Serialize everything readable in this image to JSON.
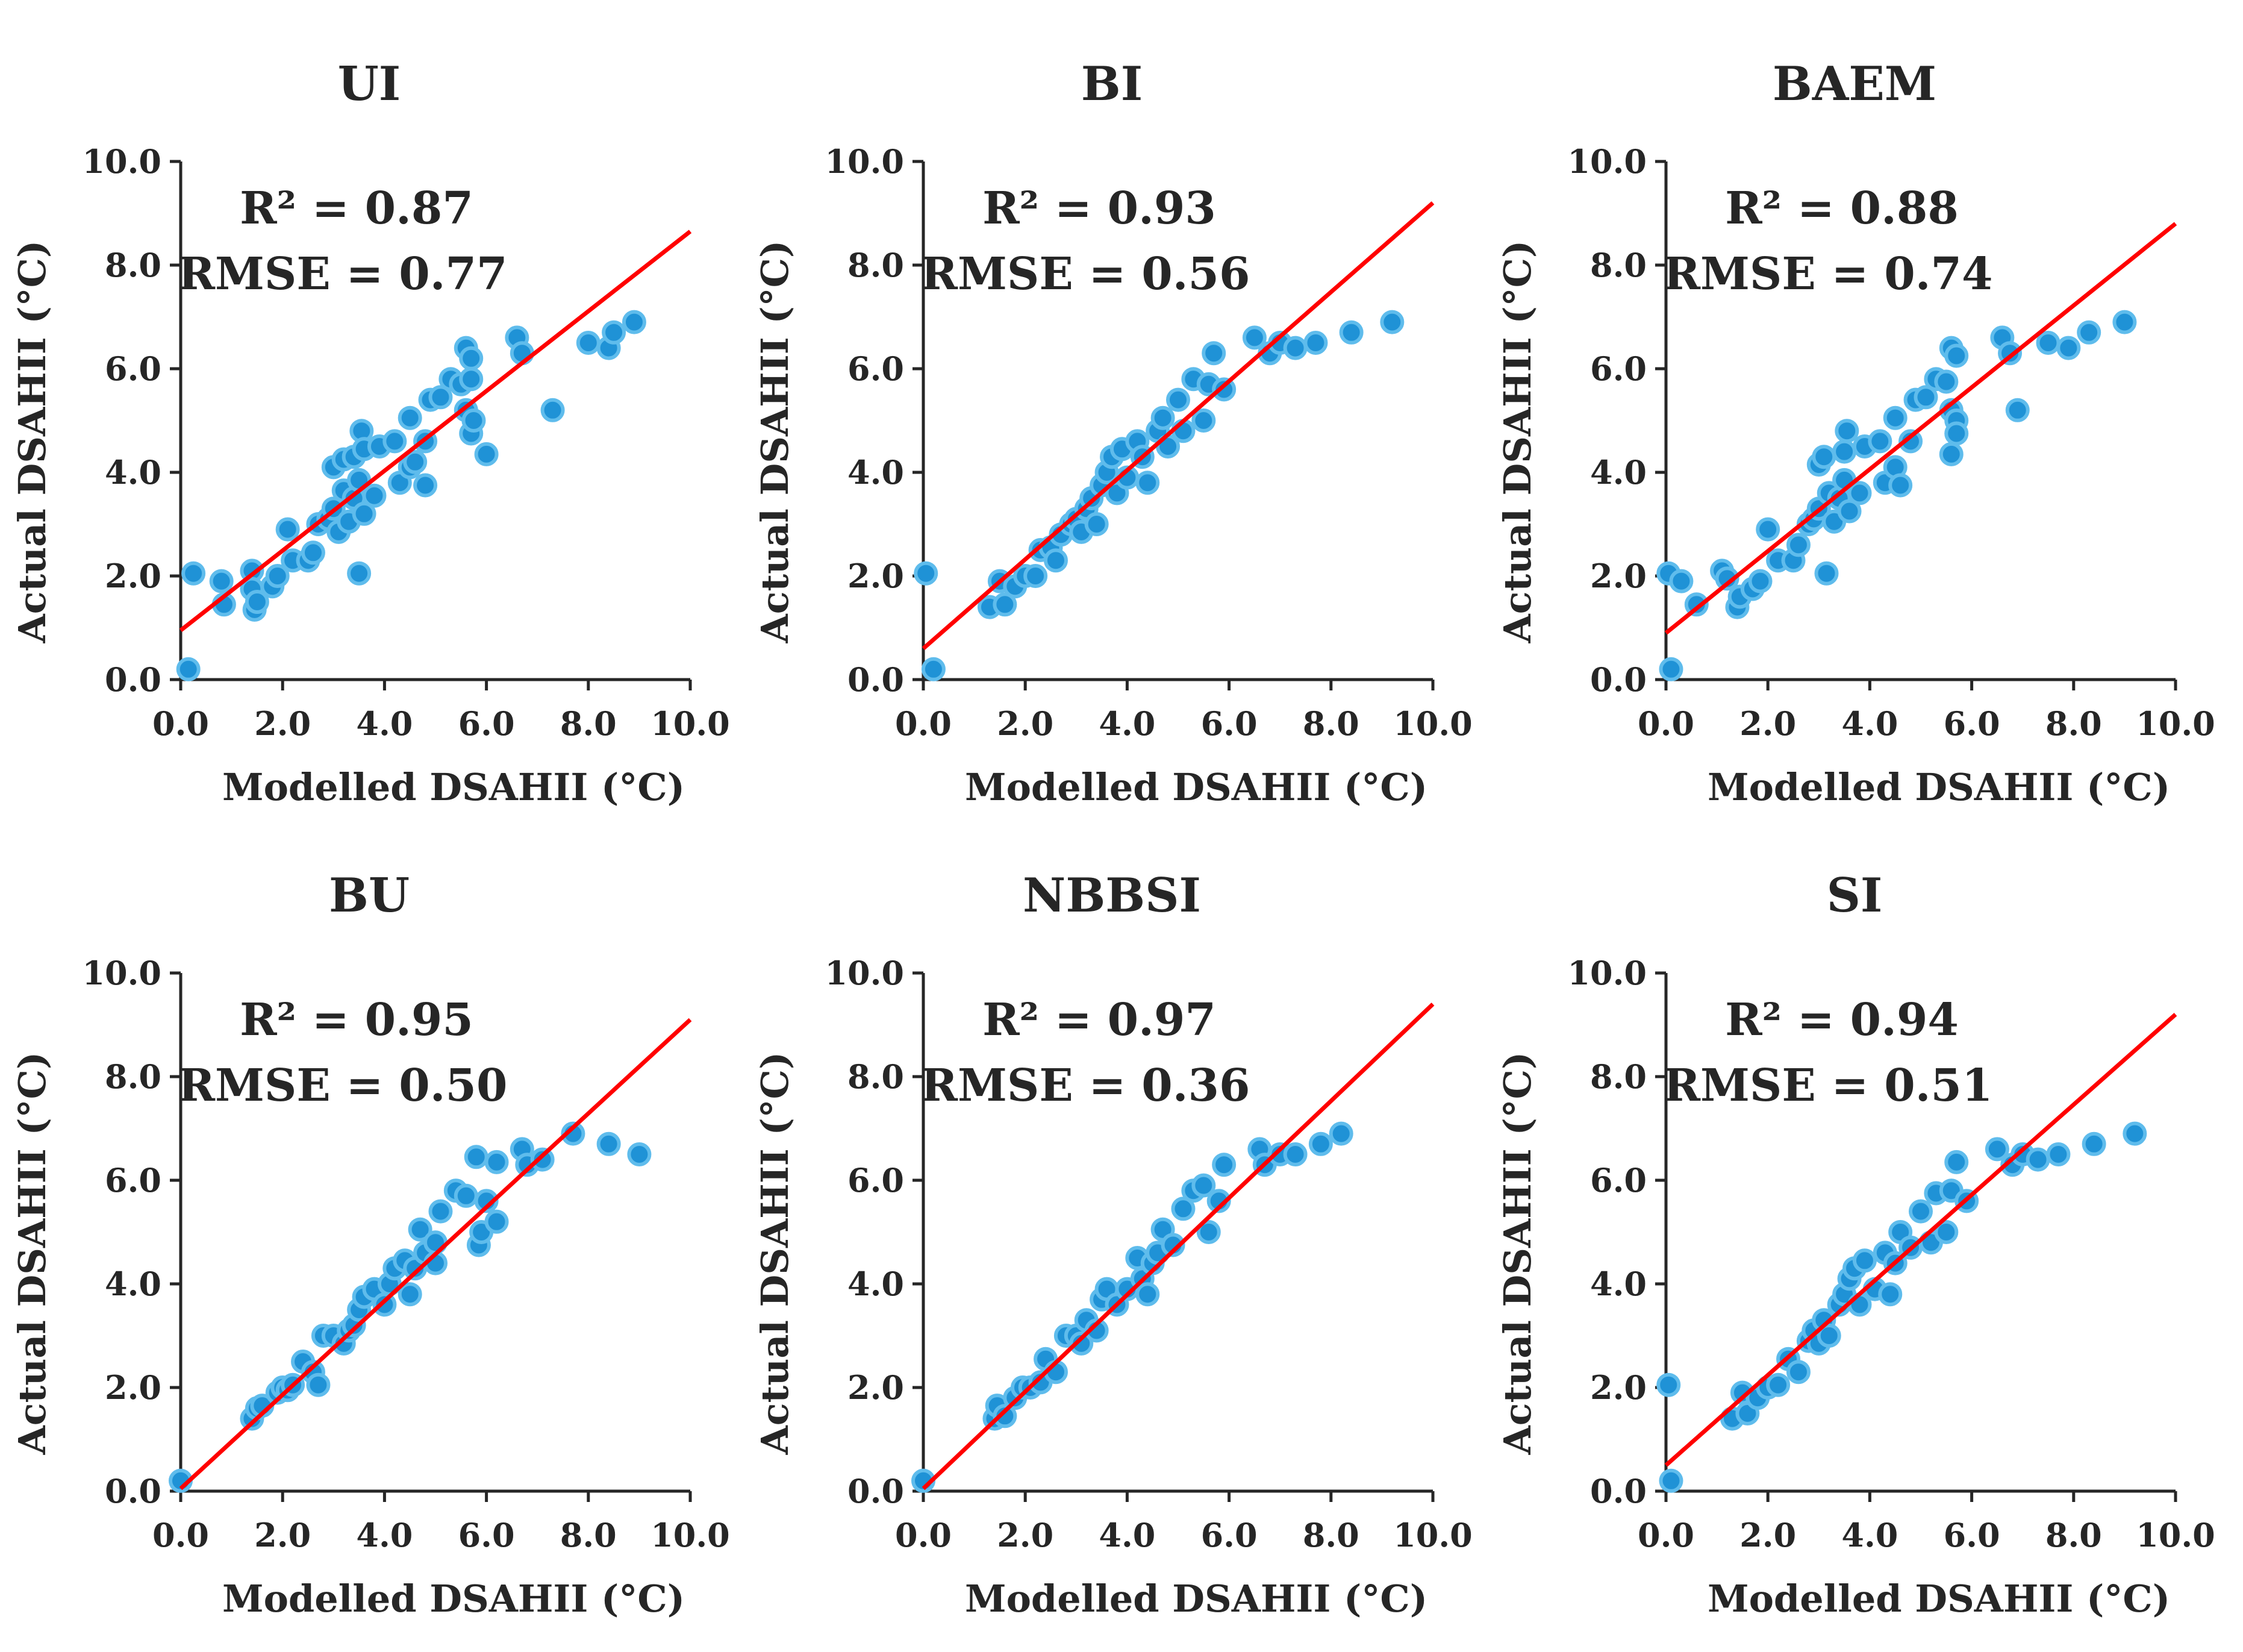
{
  "figure": {
    "axis_xlabel": "Modelled DSAHII (°C)",
    "axis_ylabel": "Actual DSAHII (°C)"
  },
  "colors": {
    "point_fill": "#1f92d6",
    "point_edge": "#5fbcec",
    "fit_line": "#ff0000",
    "axis": "#262626"
  },
  "chart_data": [
    {
      "type": "scatter",
      "title": "UI",
      "r2_label": "R² = 0.87",
      "rmse_label": "RMSE = 0.77",
      "xlabel": "Modelled DSAHII (°C)",
      "ylabel": "Actual DSAHII (°C)",
      "xlim": [
        0,
        10
      ],
      "ylim": [
        0,
        10
      ],
      "xticks": [
        "0.0",
        "2.0",
        "4.0",
        "6.0",
        "8.0",
        "10.0"
      ],
      "yticks": [
        "0.0",
        "2.0",
        "4.0",
        "6.0",
        "8.0",
        "10.0"
      ],
      "fit": {
        "intercept": 0.95,
        "slope": 0.77
      },
      "points": [
        [
          0.15,
          0.2
        ],
        [
          0.25,
          2.05
        ],
        [
          0.8,
          1.9
        ],
        [
          0.85,
          1.45
        ],
        [
          1.4,
          2.1
        ],
        [
          1.4,
          1.75
        ],
        [
          1.45,
          1.35
        ],
        [
          1.5,
          1.5
        ],
        [
          1.8,
          1.8
        ],
        [
          1.9,
          2.0
        ],
        [
          2.1,
          2.9
        ],
        [
          2.2,
          2.3
        ],
        [
          2.5,
          2.3
        ],
        [
          2.6,
          2.45
        ],
        [
          2.7,
          3.0
        ],
        [
          2.9,
          3.1
        ],
        [
          3.0,
          3.3
        ],
        [
          3.0,
          4.1
        ],
        [
          3.1,
          2.85
        ],
        [
          3.2,
          4.25
        ],
        [
          3.2,
          3.65
        ],
        [
          3.3,
          3.05
        ],
        [
          3.4,
          3.5
        ],
        [
          3.4,
          4.3
        ],
        [
          3.5,
          2.05
        ],
        [
          3.5,
          3.85
        ],
        [
          3.55,
          4.8
        ],
        [
          3.6,
          3.2
        ],
        [
          3.6,
          4.45
        ],
        [
          3.8,
          3.55
        ],
        [
          3.9,
          4.5
        ],
        [
          4.2,
          4.6
        ],
        [
          4.3,
          3.8
        ],
        [
          4.5,
          5.05
        ],
        [
          4.5,
          4.1
        ],
        [
          4.6,
          4.2
        ],
        [
          4.8,
          4.6
        ],
        [
          4.8,
          3.75
        ],
        [
          4.9,
          5.4
        ],
        [
          5.1,
          5.45
        ],
        [
          5.3,
          5.8
        ],
        [
          5.5,
          5.7
        ],
        [
          5.6,
          6.4
        ],
        [
          5.6,
          5.2
        ],
        [
          5.7,
          4.75
        ],
        [
          5.7,
          6.2
        ],
        [
          5.7,
          5.8
        ],
        [
          5.75,
          5.0
        ],
        [
          6.0,
          4.35
        ],
        [
          6.6,
          6.6
        ],
        [
          6.7,
          6.3
        ],
        [
          7.3,
          5.2
        ],
        [
          8.0,
          6.5
        ],
        [
          8.4,
          6.4
        ],
        [
          8.5,
          6.7
        ],
        [
          8.9,
          6.9
        ]
      ]
    },
    {
      "type": "scatter",
      "title": "BI",
      "r2_label": "R² = 0.93",
      "rmse_label": "RMSE = 0.56",
      "xlabel": "Modelled DSAHII (°C)",
      "ylabel": "Actual DSAHII (°C)",
      "xlim": [
        0,
        10
      ],
      "ylim": [
        0,
        10
      ],
      "xticks": [
        "0.0",
        "2.0",
        "4.0",
        "6.0",
        "8.0",
        "10.0"
      ],
      "yticks": [
        "0.0",
        "2.0",
        "4.0",
        "6.0",
        "8.0",
        "10.0"
      ],
      "fit": {
        "intercept": 0.6,
        "slope": 0.86
      },
      "points": [
        [
          0.05,
          2.05
        ],
        [
          0.2,
          0.2
        ],
        [
          1.3,
          1.4
        ],
        [
          1.5,
          1.9
        ],
        [
          1.6,
          1.45
        ],
        [
          1.8,
          1.8
        ],
        [
          2.0,
          2.0
        ],
        [
          2.2,
          2.0
        ],
        [
          2.3,
          2.5
        ],
        [
          2.5,
          2.55
        ],
        [
          2.6,
          2.3
        ],
        [
          2.7,
          2.8
        ],
        [
          2.9,
          3.0
        ],
        [
          3.0,
          3.1
        ],
        [
          3.1,
          2.85
        ],
        [
          3.2,
          3.3
        ],
        [
          3.3,
          3.5
        ],
        [
          3.4,
          3.0
        ],
        [
          3.5,
          3.75
        ],
        [
          3.6,
          4.0
        ],
        [
          3.7,
          4.3
        ],
        [
          3.8,
          3.6
        ],
        [
          3.9,
          4.45
        ],
        [
          4.0,
          3.9
        ],
        [
          4.2,
          4.6
        ],
        [
          4.3,
          4.3
        ],
        [
          4.4,
          3.8
        ],
        [
          4.6,
          4.8
        ],
        [
          4.7,
          5.05
        ],
        [
          4.8,
          4.5
        ],
        [
          5.0,
          5.4
        ],
        [
          5.1,
          4.8
        ],
        [
          5.3,
          5.8
        ],
        [
          5.5,
          5.0
        ],
        [
          5.6,
          5.7
        ],
        [
          5.7,
          6.3
        ],
        [
          5.9,
          5.6
        ],
        [
          6.5,
          6.6
        ],
        [
          6.8,
          6.3
        ],
        [
          7.0,
          6.5
        ],
        [
          7.3,
          6.4
        ],
        [
          7.7,
          6.5
        ],
        [
          8.4,
          6.7
        ],
        [
          9.2,
          6.9
        ]
      ]
    },
    {
      "type": "scatter",
      "title": "BAEM",
      "r2_label": "R² = 0.88",
      "rmse_label": "RMSE = 0.74",
      "xlabel": "Modelled DSAHII (°C)",
      "ylabel": "Actual DSAHII (°C)",
      "xlim": [
        0,
        10
      ],
      "ylim": [
        0,
        10
      ],
      "xticks": [
        "0.0",
        "2.0",
        "4.0",
        "6.0",
        "8.0",
        "10.0"
      ],
      "yticks": [
        "0.0",
        "2.0",
        "4.0",
        "6.0",
        "8.0",
        "10.0"
      ],
      "fit": {
        "intercept": 0.9,
        "slope": 0.79
      },
      "points": [
        [
          0.05,
          2.05
        ],
        [
          0.1,
          0.2
        ],
        [
          0.3,
          1.9
        ],
        [
          0.6,
          1.45
        ],
        [
          1.1,
          2.1
        ],
        [
          1.2,
          1.95
        ],
        [
          1.4,
          1.4
        ],
        [
          1.45,
          1.6
        ],
        [
          1.7,
          1.75
        ],
        [
          1.85,
          1.9
        ],
        [
          2.0,
          2.9
        ],
        [
          2.2,
          2.3
        ],
        [
          2.5,
          2.3
        ],
        [
          2.6,
          2.6
        ],
        [
          2.8,
          3.0
        ],
        [
          2.9,
          3.1
        ],
        [
          3.0,
          3.3
        ],
        [
          3.0,
          4.15
        ],
        [
          3.1,
          4.3
        ],
        [
          3.15,
          2.05
        ],
        [
          3.2,
          3.6
        ],
        [
          3.3,
          3.05
        ],
        [
          3.4,
          3.5
        ],
        [
          3.5,
          4.4
        ],
        [
          3.5,
          3.85
        ],
        [
          3.55,
          4.8
        ],
        [
          3.6,
          3.25
        ],
        [
          3.8,
          3.6
        ],
        [
          3.9,
          4.5
        ],
        [
          4.2,
          4.6
        ],
        [
          4.3,
          3.8
        ],
        [
          4.5,
          4.1
        ],
        [
          4.5,
          5.05
        ],
        [
          4.6,
          3.75
        ],
        [
          4.8,
          4.6
        ],
        [
          4.9,
          5.4
        ],
        [
          5.1,
          5.45
        ],
        [
          5.3,
          5.8
        ],
        [
          5.5,
          5.75
        ],
        [
          5.6,
          6.4
        ],
        [
          5.6,
          5.2
        ],
        [
          5.6,
          4.35
        ],
        [
          5.7,
          5.0
        ],
        [
          5.7,
          4.75
        ],
        [
          5.7,
          6.25
        ],
        [
          6.6,
          6.6
        ],
        [
          6.75,
          6.3
        ],
        [
          6.9,
          5.2
        ],
        [
          7.5,
          6.5
        ],
        [
          7.9,
          6.4
        ],
        [
          8.3,
          6.7
        ],
        [
          9.0,
          6.9
        ]
      ]
    },
    {
      "type": "scatter",
      "title": "BU",
      "r2_label": "R² = 0.95",
      "rmse_label": "RMSE = 0.50",
      "xlabel": "Modelled DSAHII (°C)",
      "ylabel": "Actual DSAHII (°C)",
      "xlim": [
        0,
        10
      ],
      "ylim": [
        0,
        10
      ],
      "xticks": [
        "0.0",
        "2.0",
        "4.0",
        "6.0",
        "8.0",
        "10.0"
      ],
      "yticks": [
        "0.0",
        "2.0",
        "4.0",
        "6.0",
        "8.0",
        "10.0"
      ],
      "fit": {
        "intercept": 0.05,
        "slope": 0.905
      },
      "points": [
        [
          0.0,
          0.2
        ],
        [
          1.4,
          1.4
        ],
        [
          1.5,
          1.6
        ],
        [
          1.6,
          1.65
        ],
        [
          1.9,
          1.9
        ],
        [
          2.0,
          2.0
        ],
        [
          2.1,
          1.95
        ],
        [
          2.2,
          2.05
        ],
        [
          2.4,
          2.5
        ],
        [
          2.6,
          2.3
        ],
        [
          2.7,
          2.05
        ],
        [
          2.8,
          3.0
        ],
        [
          3.0,
          3.0
        ],
        [
          3.2,
          2.85
        ],
        [
          3.3,
          3.1
        ],
        [
          3.4,
          3.2
        ],
        [
          3.5,
          3.5
        ],
        [
          3.6,
          3.75
        ],
        [
          3.8,
          3.9
        ],
        [
          4.0,
          3.6
        ],
        [
          4.1,
          4.0
        ],
        [
          4.2,
          4.3
        ],
        [
          4.4,
          4.45
        ],
        [
          4.5,
          3.8
        ],
        [
          4.6,
          4.3
        ],
        [
          4.7,
          5.05
        ],
        [
          4.8,
          4.6
        ],
        [
          5.0,
          4.4
        ],
        [
          5.0,
          4.8
        ],
        [
          5.1,
          5.4
        ],
        [
          5.4,
          5.8
        ],
        [
          5.6,
          5.7
        ],
        [
          5.8,
          6.45
        ],
        [
          5.85,
          4.75
        ],
        [
          5.9,
          5.0
        ],
        [
          6.0,
          5.6
        ],
        [
          6.2,
          5.2
        ],
        [
          6.2,
          6.35
        ],
        [
          6.7,
          6.6
        ],
        [
          6.8,
          6.3
        ],
        [
          7.1,
          6.4
        ],
        [
          7.7,
          6.9
        ],
        [
          8.4,
          6.7
        ],
        [
          9.0,
          6.5
        ]
      ]
    },
    {
      "type": "scatter",
      "title": "NBBSI",
      "r2_label": "R² = 0.97",
      "rmse_label": "RMSE = 0.36",
      "xlabel": "Modelled DSAHII (°C)",
      "ylabel": "Actual DSAHII (°C)",
      "xlim": [
        0,
        10
      ],
      "ylim": [
        0,
        10
      ],
      "xticks": [
        "0.0",
        "2.0",
        "4.0",
        "6.0",
        "8.0",
        "10.0"
      ],
      "yticks": [
        "0.0",
        "2.0",
        "4.0",
        "6.0",
        "8.0",
        "10.0"
      ],
      "fit": {
        "intercept": 0.05,
        "slope": 0.935
      },
      "points": [
        [
          0.0,
          0.2
        ],
        [
          1.4,
          1.4
        ],
        [
          1.45,
          1.65
        ],
        [
          1.6,
          1.45
        ],
        [
          1.8,
          1.8
        ],
        [
          1.95,
          2.0
        ],
        [
          2.1,
          2.0
        ],
        [
          2.3,
          2.1
        ],
        [
          2.4,
          2.55
        ],
        [
          2.6,
          2.3
        ],
        [
          2.8,
          3.0
        ],
        [
          3.0,
          3.0
        ],
        [
          3.1,
          2.85
        ],
        [
          3.2,
          3.3
        ],
        [
          3.4,
          3.1
        ],
        [
          3.5,
          3.7
        ],
        [
          3.6,
          3.9
        ],
        [
          3.8,
          3.6
        ],
        [
          4.0,
          3.9
        ],
        [
          4.2,
          4.5
        ],
        [
          4.3,
          4.1
        ],
        [
          4.4,
          3.8
        ],
        [
          4.5,
          4.4
        ],
        [
          4.6,
          4.6
        ],
        [
          4.7,
          5.05
        ],
        [
          4.9,
          4.75
        ],
        [
          5.1,
          5.45
        ],
        [
          5.3,
          5.8
        ],
        [
          5.5,
          5.9
        ],
        [
          5.6,
          5.0
        ],
        [
          5.8,
          5.6
        ],
        [
          5.9,
          6.3
        ],
        [
          6.6,
          6.6
        ],
        [
          6.7,
          6.3
        ],
        [
          7.0,
          6.5
        ],
        [
          7.3,
          6.5
        ],
        [
          7.8,
          6.7
        ],
        [
          8.2,
          6.9
        ]
      ]
    },
    {
      "type": "scatter",
      "title": "SI",
      "r2_label": "R² = 0.94",
      "rmse_label": "RMSE = 0.51",
      "xlabel": "Modelled DSAHII (°C)",
      "ylabel": "Actual DSAHII (°C)",
      "xlim": [
        0,
        10
      ],
      "ylim": [
        0,
        10
      ],
      "xticks": [
        "0.0",
        "2.0",
        "4.0",
        "6.0",
        "8.0",
        "10.0"
      ],
      "yticks": [
        "0.0",
        "2.0",
        "4.0",
        "6.0",
        "8.0",
        "10.0"
      ],
      "fit": {
        "intercept": 0.5,
        "slope": 0.87
      },
      "points": [
        [
          0.05,
          2.05
        ],
        [
          0.1,
          0.2
        ],
        [
          1.3,
          1.4
        ],
        [
          1.5,
          1.9
        ],
        [
          1.6,
          1.5
        ],
        [
          1.8,
          1.8
        ],
        [
          2.0,
          2.0
        ],
        [
          2.2,
          2.05
        ],
        [
          2.4,
          2.55
        ],
        [
          2.6,
          2.3
        ],
        [
          2.8,
          2.9
        ],
        [
          2.9,
          3.1
        ],
        [
          3.0,
          2.85
        ],
        [
          3.1,
          3.3
        ],
        [
          3.2,
          3.0
        ],
        [
          3.4,
          3.6
        ],
        [
          3.5,
          3.8
        ],
        [
          3.6,
          4.1
        ],
        [
          3.7,
          4.3
        ],
        [
          3.8,
          3.6
        ],
        [
          3.9,
          4.45
        ],
        [
          4.1,
          3.9
        ],
        [
          4.3,
          4.6
        ],
        [
          4.4,
          3.8
        ],
        [
          4.5,
          4.4
        ],
        [
          4.6,
          5.0
        ],
        [
          4.8,
          4.7
        ],
        [
          5.0,
          5.4
        ],
        [
          5.2,
          4.8
        ],
        [
          5.3,
          5.75
        ],
        [
          5.5,
          5.0
        ],
        [
          5.6,
          5.8
        ],
        [
          5.7,
          6.35
        ],
        [
          5.9,
          5.6
        ],
        [
          6.5,
          6.6
        ],
        [
          6.8,
          6.3
        ],
        [
          7.0,
          6.5
        ],
        [
          7.3,
          6.4
        ],
        [
          7.7,
          6.5
        ],
        [
          8.4,
          6.7
        ],
        [
          9.2,
          6.9
        ]
      ]
    }
  ]
}
